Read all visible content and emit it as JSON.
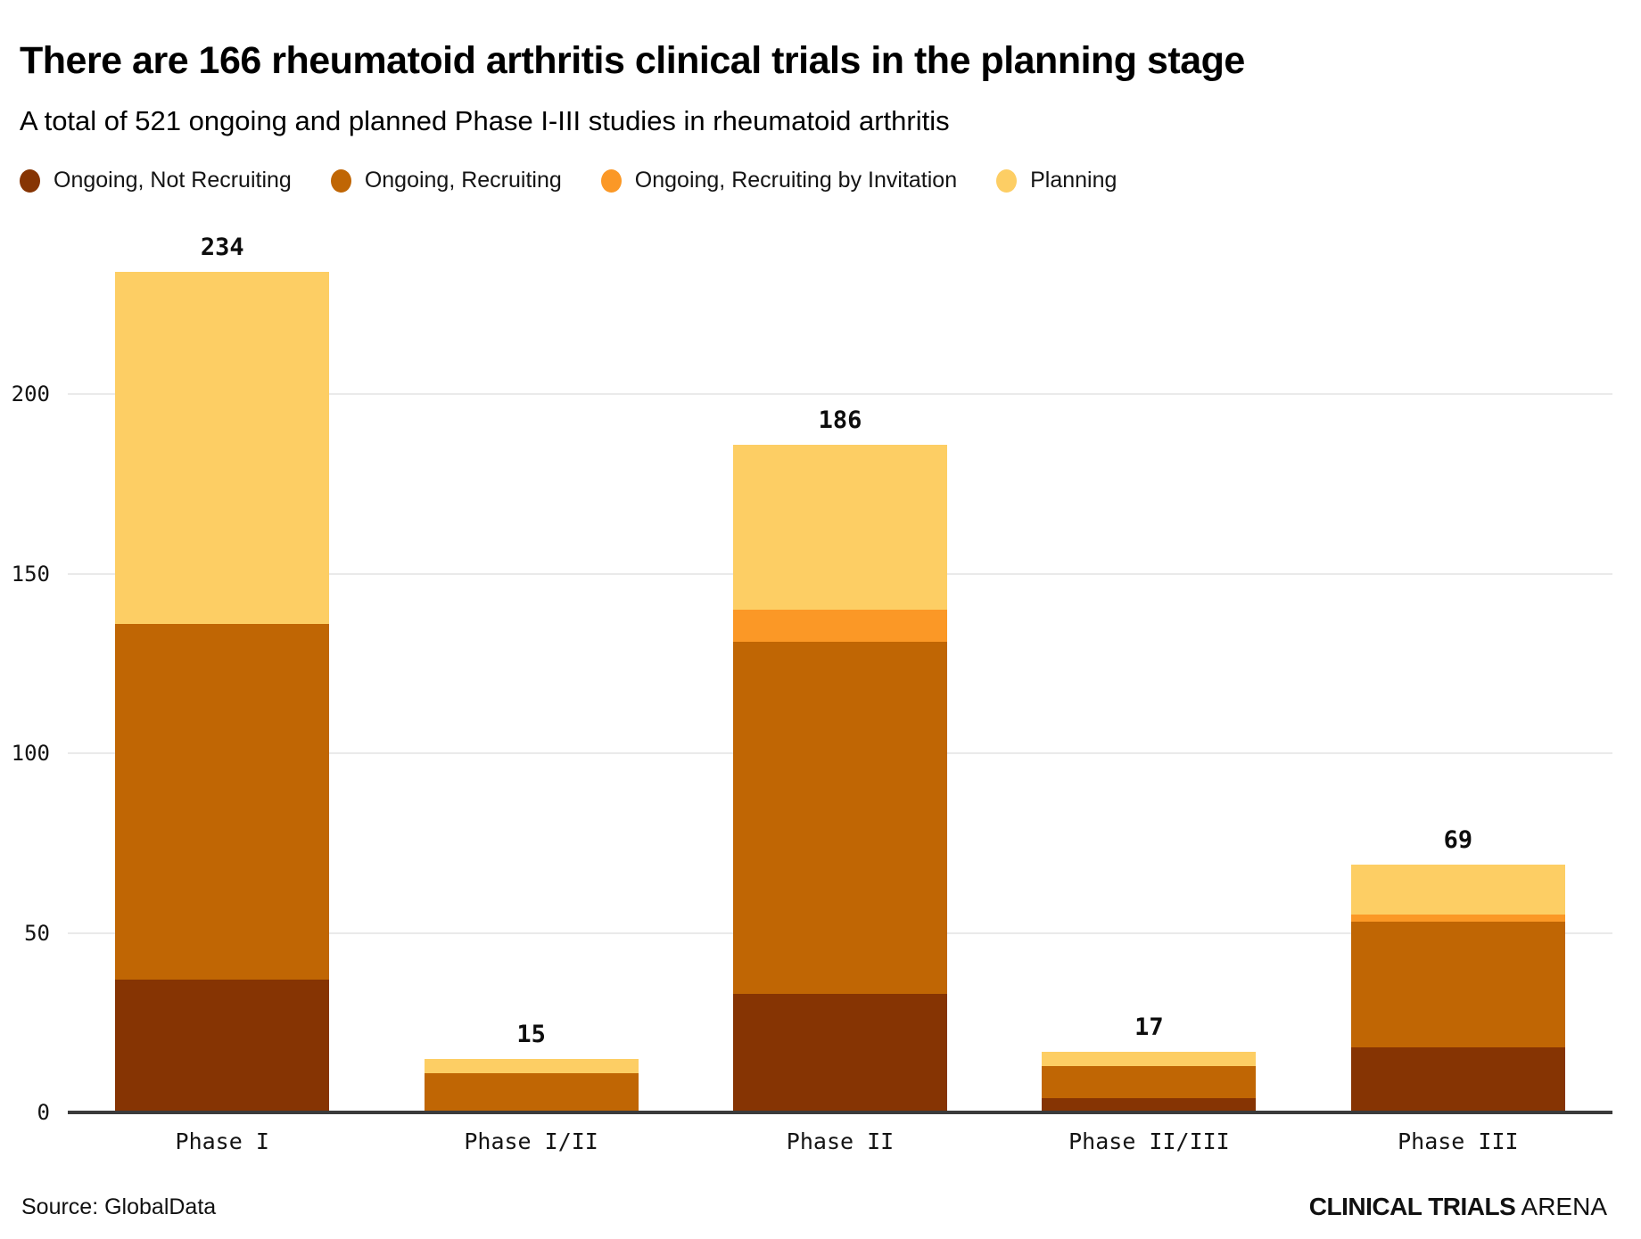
{
  "header": {
    "title": "There are 166 rheumatoid arthritis clinical trials in the planning stage",
    "subtitle": "A total of 521 ongoing and planned Phase I-III studies in rheumatoid arthritis"
  },
  "legend": {
    "items": [
      {
        "label": "Ongoing, Not Recruiting",
        "color": "#863403"
      },
      {
        "label": "Ongoing, Recruiting",
        "color": "#C06604"
      },
      {
        "label": "Ongoing, Recruiting by Invitation",
        "color": "#FB9826"
      },
      {
        "label": "Planning",
        "color": "#FDCE64"
      }
    ]
  },
  "chart_data": {
    "type": "bar",
    "stacked": true,
    "title": "There are 166 rheumatoid arthritis clinical trials in the planning stage",
    "subtitle": "A total of 521 ongoing and planned Phase I-III studies in rheumatoid arthritis",
    "categories": [
      "Phase I",
      "Phase I/II",
      "Phase II",
      "Phase II/III",
      "Phase III"
    ],
    "series": [
      {
        "name": "Ongoing, Not Recruiting",
        "color": "#863403",
        "values": [
          37,
          0,
          33,
          4,
          18
        ]
      },
      {
        "name": "Ongoing, Recruiting",
        "color": "#C06604",
        "values": [
          99,
          11,
          98,
          9,
          35
        ]
      },
      {
        "name": "Ongoing, Recruiting by Invitation",
        "color": "#FB9826",
        "values": [
          0,
          0,
          9,
          0,
          2
        ]
      },
      {
        "name": "Planning",
        "color": "#FDCE64",
        "values": [
          98,
          4,
          46,
          4,
          14
        ]
      }
    ],
    "totals": [
      234,
      15,
      186,
      17,
      69
    ],
    "y_ticks": [
      0,
      50,
      100,
      150,
      200
    ],
    "y_max": 240,
    "ylim": [
      0,
      240
    ],
    "xlabel": "",
    "ylabel": "",
    "grid": true,
    "legend_position": "top"
  },
  "footer": {
    "source": "Source: GlobalData",
    "brand": {
      "bold": "CLINICAL TRIALS",
      "light": " ARENA"
    }
  },
  "colors": {
    "gridline": "#eaeaea",
    "baseline": "#3b3b3b",
    "background": "#ffffff"
  }
}
